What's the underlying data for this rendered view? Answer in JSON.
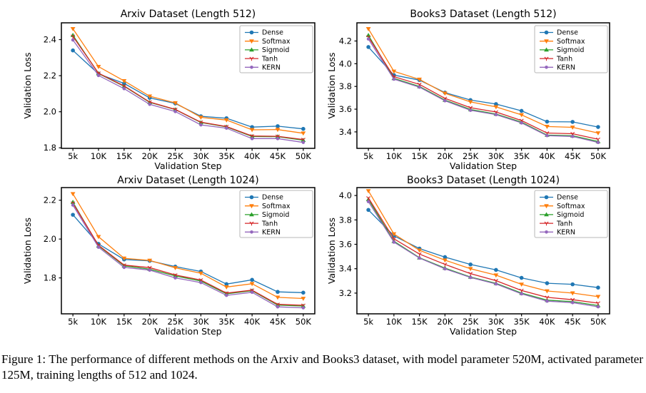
{
  "figure": {
    "caption": "Figure 1: The performance of different methods on the Arxiv and Books3 dataset, with model parameter 520M, activated parameter 125M, training lengths of 512 and 1024."
  },
  "palette": {
    "dense": "#1f77b4",
    "softmax": "#ff7f0e",
    "sigmoid": "#2ca02c",
    "tanh": "#d62728",
    "kern": "#9467bd"
  },
  "chart_data": [
    {
      "type": "line",
      "title": "Arxiv Dataset (Length 512)",
      "xlabel": "Validation Step",
      "ylabel": "Validation Loss",
      "x": [
        5000,
        10000,
        15000,
        20000,
        25000,
        30000,
        35000,
        40000,
        45000,
        50000
      ],
      "xtick_labels": [
        "5k",
        "10K",
        "15K",
        "20K",
        "25K",
        "30K",
        "35K",
        "40K",
        "45K",
        "50K"
      ],
      "xlim": [
        2750,
        52250
      ],
      "ylim": [
        1.797,
        2.493
      ],
      "yticks": [
        1.8,
        2.0,
        2.2,
        2.4
      ],
      "grid": false,
      "legend_position": "upper right",
      "series": [
        {
          "name": "Dense",
          "color": "#1f77b4",
          "marker": "circle",
          "values": [
            2.34,
            2.21,
            2.157,
            2.077,
            2.046,
            1.975,
            1.964,
            1.915,
            1.92,
            1.905
          ]
        },
        {
          "name": "Softmax",
          "color": "#ff7f0e",
          "marker": "triangle-down",
          "values": [
            2.46,
            2.25,
            2.171,
            2.086,
            2.049,
            1.969,
            1.954,
            1.9,
            1.901,
            1.881
          ]
        },
        {
          "name": "Sigmoid",
          "color": "#2ca02c",
          "marker": "triangle-up",
          "values": [
            2.424,
            2.212,
            2.141,
            2.052,
            2.012,
            1.94,
            1.916,
            1.863,
            1.862,
            1.842
          ]
        },
        {
          "name": "Tanh",
          "color": "#d62728",
          "marker": "tri-down",
          "values": [
            2.418,
            2.214,
            2.143,
            2.054,
            2.013,
            1.942,
            1.918,
            1.866,
            1.864,
            1.846
          ]
        },
        {
          "name": "KERN",
          "color": "#9467bd",
          "marker": "dot",
          "values": [
            2.398,
            2.201,
            2.128,
            2.041,
            2.001,
            1.927,
            1.909,
            1.851,
            1.851,
            1.83
          ]
        }
      ]
    },
    {
      "type": "line",
      "title": "Books3 Dataset (Length 512)",
      "xlabel": "Validation Step",
      "ylabel": "Validation Loss",
      "x": [
        5000,
        10000,
        15000,
        20000,
        25000,
        30000,
        35000,
        40000,
        45000,
        50000
      ],
      "xtick_labels": [
        "5k",
        "10K",
        "15K",
        "20K",
        "25K",
        "30K",
        "35K",
        "40K",
        "45K",
        "50K"
      ],
      "xlim": [
        2750,
        52250
      ],
      "ylim": [
        3.255,
        4.36
      ],
      "yticks": [
        3.4,
        3.6,
        3.8,
        4.0,
        4.2
      ],
      "grid": false,
      "legend_position": "upper right",
      "series": [
        {
          "name": "Dense",
          "color": "#1f77b4",
          "marker": "circle",
          "values": [
            4.147,
            3.9,
            3.856,
            3.746,
            3.68,
            3.645,
            3.585,
            3.49,
            3.488,
            3.443
          ]
        },
        {
          "name": "Softmax",
          "color": "#ff7f0e",
          "marker": "triangle-down",
          "values": [
            4.307,
            3.933,
            3.862,
            3.74,
            3.664,
            3.62,
            3.55,
            3.447,
            3.44,
            3.39
          ]
        },
        {
          "name": "Sigmoid",
          "color": "#2ca02c",
          "marker": "triangle-up",
          "values": [
            4.25,
            3.871,
            3.8,
            3.68,
            3.597,
            3.557,
            3.486,
            3.372,
            3.366,
            3.315
          ]
        },
        {
          "name": "Tanh",
          "color": "#d62728",
          "marker": "tri-down",
          "values": [
            4.235,
            3.886,
            3.818,
            3.695,
            3.613,
            3.575,
            3.5,
            3.39,
            3.384,
            3.335
          ]
        },
        {
          "name": "KERN",
          "color": "#9467bd",
          "marker": "dot",
          "values": [
            4.218,
            3.864,
            3.794,
            3.674,
            3.59,
            3.552,
            3.479,
            3.367,
            3.36,
            3.307
          ]
        }
      ]
    },
    {
      "type": "line",
      "title": "Arxiv Dataset (Length 1024)",
      "xlabel": "Validation Step",
      "ylabel": "Validation Loss",
      "x": [
        5000,
        10000,
        15000,
        20000,
        25000,
        30000,
        35000,
        40000,
        45000,
        50000
      ],
      "xtick_labels": [
        "5k",
        "10K",
        "15K",
        "20K",
        "25K",
        "30K",
        "35K",
        "40K",
        "45K",
        "50K"
      ],
      "xlim": [
        2750,
        52250
      ],
      "ylim": [
        1.615,
        2.265
      ],
      "yticks": [
        1.8,
        2.0,
        2.2
      ],
      "grid": false,
      "legend_position": "upper right",
      "series": [
        {
          "name": "Dense",
          "color": "#1f77b4",
          "marker": "circle",
          "values": [
            2.125,
            1.975,
            1.895,
            1.888,
            1.858,
            1.833,
            1.768,
            1.79,
            1.728,
            1.724
          ]
        },
        {
          "name": "Softmax",
          "color": "#ff7f0e",
          "marker": "triangle-down",
          "values": [
            2.233,
            2.012,
            1.901,
            1.89,
            1.852,
            1.824,
            1.753,
            1.77,
            1.7,
            1.694
          ]
        },
        {
          "name": "Sigmoid",
          "color": "#2ca02c",
          "marker": "triangle-up",
          "values": [
            2.19,
            1.965,
            1.862,
            1.845,
            1.81,
            1.784,
            1.718,
            1.734,
            1.66,
            1.655
          ]
        },
        {
          "name": "Tanh",
          "color": "#d62728",
          "marker": "tri-down",
          "values": [
            2.185,
            1.968,
            1.866,
            1.853,
            1.815,
            1.789,
            1.722,
            1.737,
            1.664,
            1.659
          ]
        },
        {
          "name": "KERN",
          "color": "#9467bd",
          "marker": "dot",
          "values": [
            2.175,
            1.958,
            1.854,
            1.84,
            1.8,
            1.776,
            1.71,
            1.726,
            1.651,
            1.646
          ]
        }
      ]
    },
    {
      "type": "line",
      "title": "Books3 Dataset (Length 1024)",
      "xlabel": "Validation Step",
      "ylabel": "Validation Loss",
      "x": [
        5000,
        10000,
        15000,
        20000,
        25000,
        30000,
        35000,
        40000,
        45000,
        50000
      ],
      "xtick_labels": [
        "5k",
        "10K",
        "15K",
        "20K",
        "25K",
        "30K",
        "35K",
        "40K",
        "45K",
        "50K"
      ],
      "xlim": [
        2750,
        52250
      ],
      "ylim": [
        3.03,
        4.065
      ],
      "yticks": [
        3.2,
        3.4,
        3.6,
        3.8,
        4.0
      ],
      "grid": false,
      "legend_position": "upper right",
      "series": [
        {
          "name": "Dense",
          "color": "#1f77b4",
          "marker": "circle",
          "values": [
            3.882,
            3.67,
            3.565,
            3.495,
            3.435,
            3.39,
            3.325,
            3.281,
            3.272,
            3.245
          ]
        },
        {
          "name": "Softmax",
          "color": "#ff7f0e",
          "marker": "triangle-down",
          "values": [
            4.038,
            3.685,
            3.551,
            3.47,
            3.4,
            3.347,
            3.272,
            3.217,
            3.2,
            3.171
          ]
        },
        {
          "name": "Sigmoid",
          "color": "#2ca02c",
          "marker": "triangle-up",
          "values": [
            3.968,
            3.625,
            3.49,
            3.405,
            3.332,
            3.28,
            3.2,
            3.142,
            3.13,
            3.098
          ]
        },
        {
          "name": "Tanh",
          "color": "#d62728",
          "marker": "tri-down",
          "values": [
            3.98,
            3.645,
            3.52,
            3.435,
            3.36,
            3.302,
            3.222,
            3.165,
            3.146,
            3.118
          ]
        },
        {
          "name": "KERN",
          "color": "#9467bd",
          "marker": "dot",
          "values": [
            3.95,
            3.618,
            3.487,
            3.399,
            3.328,
            3.275,
            3.194,
            3.134,
            3.122,
            3.088
          ]
        }
      ]
    }
  ]
}
